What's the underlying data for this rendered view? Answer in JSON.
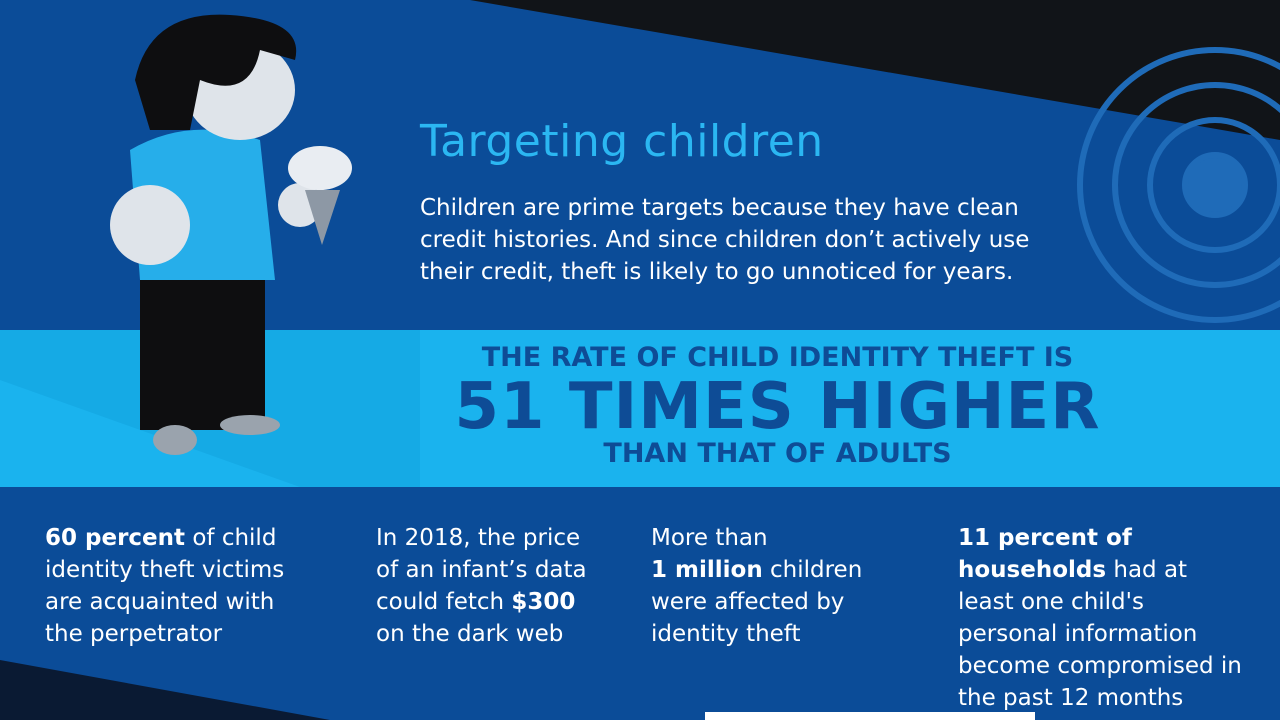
{
  "header": {
    "title": "Targeting children",
    "text": "Children are prime targets because they have clean credit histories. And since children don’t actively use their credit, theft is likely to go unnoticed for years."
  },
  "banner": {
    "line1": "THE RATE OF CHILD IDENTITY THEFT IS",
    "line2": "51 TIMES HIGHER",
    "line3": "THAN THAT OF ADULTS"
  },
  "stats": [
    [
      {
        "text": "60 percent",
        "weight": "bold"
      },
      {
        "text": "of child identity theft victims are acquainted with the perpetrator",
        "weight": "normal"
      }
    ],
    [
      {
        "text": "In 2018, the price of an infant’s data could fetch",
        "weight": "normal"
      },
      {
        "text": "$300",
        "weight": "bold"
      },
      {
        "text": "on the dark web",
        "weight": "normal"
      }
    ],
    [
      {
        "text": "More than",
        "weight": "normal"
      },
      {
        "text": "1 million",
        "weight": "bold"
      },
      {
        "text": "children were affected by identity theft",
        "weight": "normal"
      }
    ],
    [
      {
        "text": "11 percent of households",
        "weight": "bold"
      },
      {
        "text": "had at least one child's personal information become compromised in the past 12 months",
        "weight": "normal"
      }
    ]
  ]
}
